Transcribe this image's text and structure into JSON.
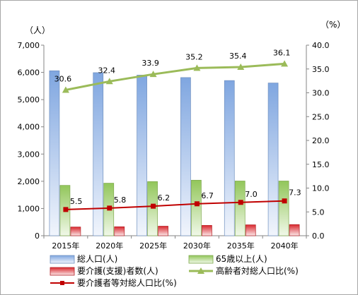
{
  "chart_data": {
    "type": "bar",
    "categories": [
      "2015年",
      "2020年",
      "2025年",
      "2030年",
      "2035年",
      "2040年"
    ],
    "left_axis": {
      "unit": "（人）",
      "ylim": [
        0,
        7000
      ],
      "ticks": [
        "0",
        "1,000",
        "2,000",
        "3,000",
        "4,000",
        "5,000",
        "6,000",
        "7,000"
      ]
    },
    "right_axis": {
      "unit": "（%）",
      "ylim": [
        0,
        40
      ],
      "ticks": [
        "0.0",
        "5.0",
        "10.0",
        "15.0",
        "20.0",
        "25.0",
        "30.0",
        "35.0",
        "40.0"
      ]
    },
    "series": [
      {
        "name": "総人口(人)",
        "kind": "bar",
        "axis": "left",
        "values": [
          6060,
          5990,
          5900,
          5810,
          5700,
          5610
        ],
        "color": "#7fa6e0"
      },
      {
        "name": "65歳以上(人)",
        "kind": "bar",
        "axis": "left",
        "values": [
          1850,
          1930,
          1990,
          2040,
          2010,
          2010
        ],
        "color": "#92c65a"
      },
      {
        "name": "要介護(支援)者数(人)",
        "kind": "bar",
        "axis": "left",
        "values": [
          320,
          330,
          350,
          380,
          400,
          410
        ],
        "color": "#d9282e"
      },
      {
        "name": "高齢者対総人口比(%)",
        "kind": "line",
        "axis": "right",
        "values": [
          30.6,
          32.4,
          33.9,
          35.2,
          35.4,
          36.1
        ],
        "labels": [
          "30.6",
          "32.4",
          "33.9",
          "35.2",
          "35.4",
          "36.1"
        ],
        "color": "#9bbb59"
      },
      {
        "name": "要介護者等対総人口比(%)",
        "kind": "line",
        "axis": "right",
        "values": [
          5.5,
          5.8,
          6.2,
          6.7,
          7.0,
          7.3
        ],
        "labels": [
          "5.5",
          "5.8",
          "6.2",
          "6.7",
          "7.0",
          "7.3"
        ],
        "color": "#c00000"
      }
    ],
    "grid": false,
    "legend_placement": "bottom"
  }
}
